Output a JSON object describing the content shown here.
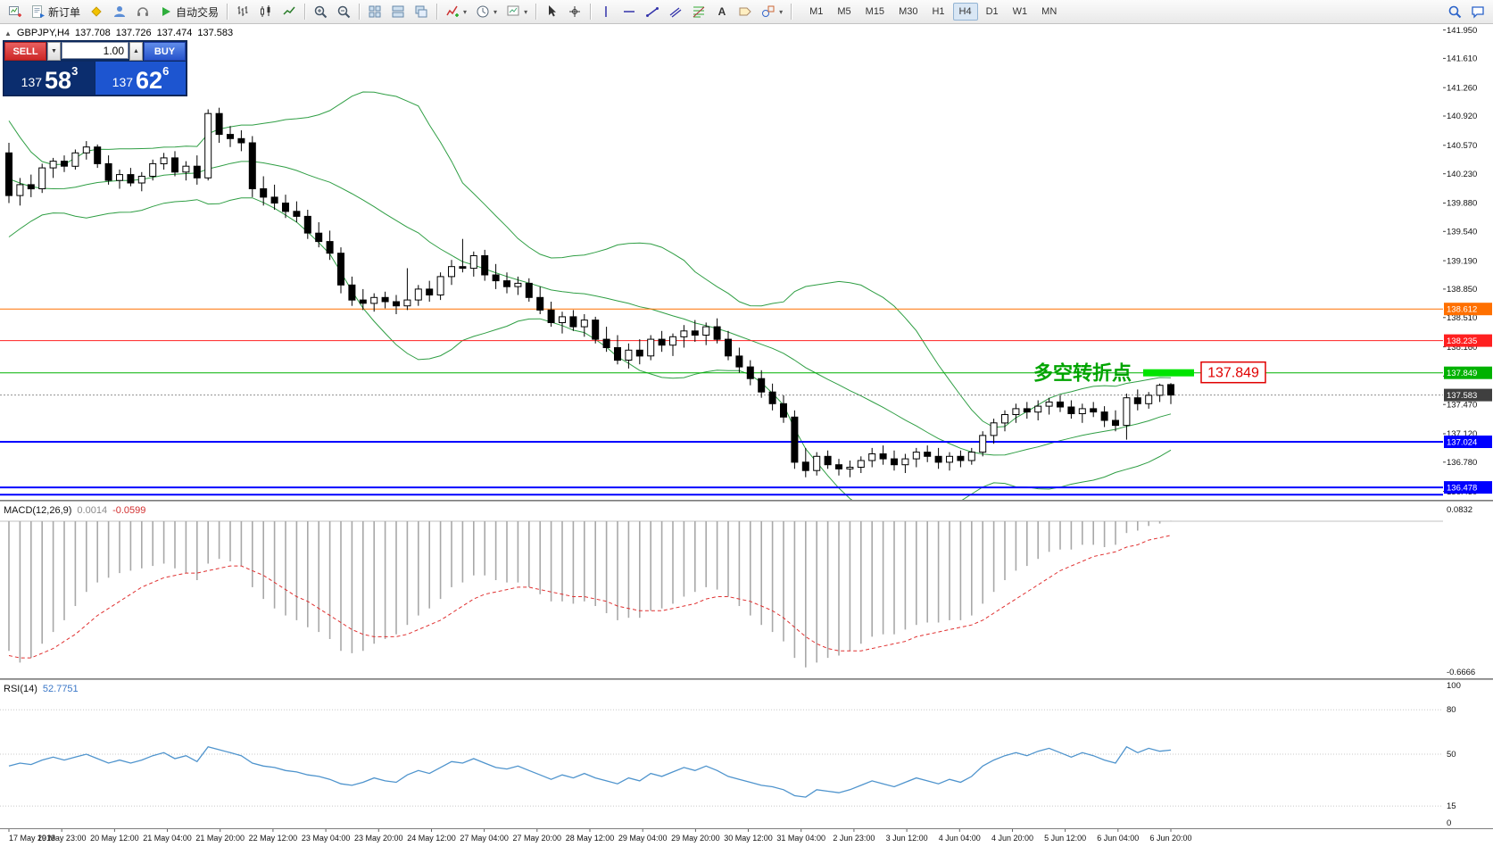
{
  "toolbar": {
    "buttons": [
      {
        "name": "new-chart-button",
        "icon": "chart-plus"
      },
      {
        "name": "new-order-button",
        "icon": "doc-order",
        "label": "新订单"
      },
      {
        "name": "mql5-community-button",
        "icon": "diamond"
      },
      {
        "name": "profile-button",
        "icon": "profile"
      },
      {
        "name": "support-button",
        "icon": "headset"
      },
      {
        "name": "autotrading-button",
        "icon": "play",
        "label": "自动交易"
      },
      {
        "sep": true
      },
      {
        "name": "bar-chart-button",
        "icon": "bars"
      },
      {
        "name": "candlestick-chart-button",
        "icon": "candles"
      },
      {
        "name": "line-chart-button",
        "icon": "linechart"
      },
      {
        "sep": true
      },
      {
        "name": "zoom-in-button",
        "icon": "zoomin"
      },
      {
        "name": "zoom-out-button",
        "icon": "zoomout"
      },
      {
        "sep": true
      },
      {
        "name": "auto-arrange-button",
        "icon": "grid"
      },
      {
        "name": "tile-windows-button",
        "icon": "tileh"
      },
      {
        "name": "cascade-windows-button",
        "icon": "tilev"
      },
      {
        "sep": true
      },
      {
        "name": "indicators-button",
        "icon": "indicator",
        "dropdown": true
      },
      {
        "name": "periods-button",
        "icon": "clock",
        "dropdown": true
      },
      {
        "name": "templates-button",
        "icon": "template",
        "dropdown": true
      },
      {
        "sep": true
      },
      {
        "name": "cursor-button",
        "icon": "cursor"
      },
      {
        "name": "crosshair-button",
        "icon": "crosshair"
      },
      {
        "sep": true
      },
      {
        "name": "vertical-line-button",
        "icon": "vline"
      },
      {
        "name": "horizontal-line-button",
        "icon": "hline"
      },
      {
        "name": "trendline-button",
        "icon": "trend"
      },
      {
        "name": "channel-button",
        "icon": "channel"
      },
      {
        "name": "fibonacci-button",
        "icon": "fibo"
      },
      {
        "name": "text-button",
        "icon": "textA"
      },
      {
        "name": "label-button",
        "icon": "label"
      },
      {
        "name": "shapes-button",
        "icon": "shapes",
        "dropdown": true
      },
      {
        "sep": true
      }
    ],
    "timeframes": [
      {
        "label": "M1"
      },
      {
        "label": "M5"
      },
      {
        "label": "M15"
      },
      {
        "label": "M30"
      },
      {
        "label": "H1"
      },
      {
        "label": "H4",
        "active": true
      },
      {
        "label": "D1"
      },
      {
        "label": "W1"
      },
      {
        "label": "MN"
      }
    ],
    "right_buttons": [
      {
        "name": "search-button",
        "icon": "search"
      },
      {
        "name": "chat-button",
        "icon": "chat"
      }
    ]
  },
  "symbol_overlay": {
    "symbol": "GBPJPY,H4",
    "open": "137.708",
    "high": "137.726",
    "low": "137.474",
    "close": "137.583"
  },
  "trade_panel": {
    "sell_label": "SELL",
    "buy_label": "BUY",
    "volume": "1.00",
    "sell_price": {
      "big": "137",
      "pips": "58",
      "pt": "3"
    },
    "buy_price": {
      "big": "137",
      "pips": "62",
      "pt": "6"
    }
  },
  "chart_data": {
    "type": "candlestick",
    "symbol": "GBPJPY",
    "timeframe": "H4",
    "price_axis": {
      "max": 142.02,
      "min": 136.33,
      "labels": [
        "141.950",
        "141.610",
        "141.260",
        "140.920",
        "140.570",
        "140.230",
        "139.880",
        "139.540",
        "139.190",
        "138.850",
        "138.510",
        "138.160",
        "137.810",
        "137.470",
        "137.120",
        "136.780",
        "136.430"
      ]
    },
    "candles": [
      [
        140.48,
        140.6,
        139.88,
        139.97
      ],
      [
        139.97,
        140.18,
        139.85,
        140.1
      ],
      [
        140.1,
        140.22,
        139.95,
        140.05
      ],
      [
        140.05,
        140.35,
        140.0,
        140.3
      ],
      [
        140.3,
        140.42,
        140.18,
        140.38
      ],
      [
        140.38,
        140.45,
        140.25,
        140.32
      ],
      [
        140.32,
        140.52,
        140.28,
        140.48
      ],
      [
        140.48,
        140.62,
        140.4,
        140.55
      ],
      [
        140.55,
        140.58,
        140.3,
        140.35
      ],
      [
        140.35,
        140.45,
        140.1,
        140.15
      ],
      [
        140.15,
        140.28,
        140.05,
        140.22
      ],
      [
        140.22,
        140.3,
        140.08,
        140.12
      ],
      [
        140.12,
        140.25,
        140.02,
        140.2
      ],
      [
        140.2,
        140.4,
        140.15,
        140.35
      ],
      [
        140.35,
        140.48,
        140.28,
        140.42
      ],
      [
        140.42,
        140.5,
        140.2,
        140.25
      ],
      [
        140.25,
        140.38,
        140.15,
        140.32
      ],
      [
        140.32,
        140.45,
        140.1,
        140.18
      ],
      [
        140.18,
        141.0,
        140.15,
        140.95
      ],
      [
        140.95,
        141.02,
        140.6,
        140.7
      ],
      [
        140.7,
        140.8,
        140.55,
        140.65
      ],
      [
        140.65,
        140.75,
        140.5,
        140.6
      ],
      [
        140.6,
        140.68,
        139.95,
        140.05
      ],
      [
        140.05,
        140.2,
        139.85,
        139.95
      ],
      [
        139.95,
        140.1,
        139.8,
        139.88
      ],
      [
        139.88,
        139.98,
        139.7,
        139.78
      ],
      [
        139.78,
        139.9,
        139.65,
        139.72
      ],
      [
        139.72,
        139.8,
        139.45,
        139.52
      ],
      [
        139.52,
        139.65,
        139.35,
        139.42
      ],
      [
        139.42,
        139.55,
        139.2,
        139.28
      ],
      [
        139.28,
        139.35,
        138.8,
        138.9
      ],
      [
        138.9,
        139.0,
        138.65,
        138.72
      ],
      [
        138.72,
        138.85,
        138.6,
        138.68
      ],
      [
        138.68,
        138.8,
        138.58,
        138.75
      ],
      [
        138.75,
        138.82,
        138.62,
        138.7
      ],
      [
        138.7,
        138.78,
        138.55,
        138.65
      ],
      [
        138.65,
        139.1,
        138.6,
        138.72
      ],
      [
        138.72,
        138.9,
        138.65,
        138.85
      ],
      [
        138.85,
        138.95,
        138.7,
        138.78
      ],
      [
        138.78,
        139.05,
        138.72,
        139.0
      ],
      [
        139.0,
        139.2,
        138.9,
        139.12
      ],
      [
        139.12,
        139.45,
        139.05,
        139.1
      ],
      [
        139.1,
        139.3,
        139.0,
        139.25
      ],
      [
        139.25,
        139.32,
        138.95,
        139.02
      ],
      [
        139.02,
        139.15,
        138.85,
        138.95
      ],
      [
        138.95,
        139.05,
        138.8,
        138.88
      ],
      [
        138.88,
        139.0,
        138.78,
        138.92
      ],
      [
        138.92,
        138.98,
        138.7,
        138.75
      ],
      [
        138.75,
        138.88,
        138.55,
        138.6
      ],
      [
        138.6,
        138.7,
        138.4,
        138.45
      ],
      [
        138.45,
        138.58,
        138.32,
        138.52
      ],
      [
        138.52,
        138.6,
        138.35,
        138.4
      ],
      [
        138.4,
        138.55,
        138.28,
        138.48
      ],
      [
        138.48,
        138.52,
        138.2,
        138.25
      ],
      [
        138.25,
        138.4,
        138.1,
        138.15
      ],
      [
        138.15,
        138.3,
        137.95,
        138.0
      ],
      [
        138.0,
        138.2,
        137.9,
        138.12
      ],
      [
        138.12,
        138.25,
        137.95,
        138.05
      ],
      [
        138.05,
        138.3,
        138.0,
        138.25
      ],
      [
        138.25,
        138.35,
        138.1,
        138.18
      ],
      [
        138.18,
        138.32,
        138.05,
        138.28
      ],
      [
        138.28,
        138.42,
        138.15,
        138.35
      ],
      [
        138.35,
        138.48,
        138.22,
        138.3
      ],
      [
        138.3,
        138.45,
        138.18,
        138.4
      ],
      [
        138.4,
        138.5,
        138.2,
        138.25
      ],
      [
        138.25,
        138.35,
        138.0,
        138.05
      ],
      [
        138.05,
        138.15,
        137.85,
        137.92
      ],
      [
        137.92,
        138.0,
        137.7,
        137.78
      ],
      [
        137.78,
        137.88,
        137.55,
        137.62
      ],
      [
        137.62,
        137.72,
        137.4,
        137.48
      ],
      [
        137.48,
        137.58,
        137.25,
        137.32
      ],
      [
        137.32,
        137.4,
        136.7,
        136.78
      ],
      [
        136.78,
        136.95,
        136.6,
        136.68
      ],
      [
        136.68,
        136.9,
        136.62,
        136.85
      ],
      [
        136.85,
        136.92,
        136.7,
        136.75
      ],
      [
        136.75,
        136.82,
        136.62,
        136.7
      ],
      [
        136.7,
        136.8,
        136.6,
        136.72
      ],
      [
        136.72,
        136.85,
        136.65,
        136.8
      ],
      [
        136.8,
        136.95,
        136.72,
        136.88
      ],
      [
        136.88,
        136.98,
        136.75,
        136.82
      ],
      [
        136.82,
        136.92,
        136.68,
        136.75
      ],
      [
        136.75,
        136.88,
        136.65,
        136.82
      ],
      [
        136.82,
        136.95,
        136.72,
        136.9
      ],
      [
        136.9,
        136.98,
        136.78,
        136.85
      ],
      [
        136.85,
        136.95,
        136.7,
        136.78
      ],
      [
        136.78,
        136.9,
        136.68,
        136.85
      ],
      [
        136.85,
        136.92,
        136.72,
        136.8
      ],
      [
        136.8,
        136.95,
        136.75,
        136.9
      ],
      [
        136.9,
        137.15,
        136.85,
        137.1
      ],
      [
        137.1,
        137.3,
        137.0,
        137.25
      ],
      [
        137.25,
        137.4,
        137.15,
        137.35
      ],
      [
        137.35,
        137.48,
        137.25,
        137.42
      ],
      [
        137.42,
        137.5,
        137.3,
        137.38
      ],
      [
        137.38,
        137.52,
        137.28,
        137.45
      ],
      [
        137.45,
        137.55,
        137.35,
        137.5
      ],
      [
        137.5,
        137.58,
        137.38,
        137.44
      ],
      [
        137.44,
        137.52,
        137.3,
        137.36
      ],
      [
        137.36,
        137.48,
        137.25,
        137.42
      ],
      [
        137.42,
        137.5,
        137.32,
        137.38
      ],
      [
        137.38,
        137.45,
        137.2,
        137.28
      ],
      [
        137.28,
        137.4,
        137.15,
        137.22
      ],
      [
        137.22,
        137.6,
        137.05,
        137.55
      ],
      [
        137.55,
        137.65,
        137.4,
        137.48
      ],
      [
        137.48,
        137.62,
        137.42,
        137.58
      ],
      [
        137.58,
        137.72,
        137.5,
        137.7
      ],
      [
        137.708,
        137.726,
        137.474,
        137.583
      ]
    ],
    "bollinger": {
      "period": 20,
      "deviation": 2,
      "color": "#2f9e44",
      "pre_closes": [
        141.3,
        141.1,
        140.9,
        140.7,
        140.5,
        140.3,
        140.1,
        139.95,
        139.85,
        139.9,
        140.0,
        140.1,
        139.95,
        139.85,
        139.9,
        140.05,
        140.15,
        140.05,
        139.95,
        140.1
      ]
    },
    "hlines": [
      {
        "price": 138.612,
        "label": "138.612",
        "color": "#ff7000",
        "width": 1
      },
      {
        "price": 138.235,
        "label": "138.235",
        "color": "#ff2020",
        "width": 1
      },
      {
        "price": 137.849,
        "label": "137.849",
        "color": "#00b200",
        "width": 1
      },
      {
        "price": 137.024,
        "label": "137.024",
        "color": "#0000ff",
        "width": 2
      },
      {
        "price": 136.478,
        "label": "136.478",
        "color": "#0000ff",
        "width": 2
      },
      {
        "price": 136.392,
        "label": null,
        "color": "#0000ff",
        "width": 2
      }
    ],
    "current_price": {
      "value": 137.583,
      "label": "137.583",
      "badge_color": "#3f3f3f"
    },
    "annotation": {
      "text": "多空转折点",
      "price": 137.849,
      "label": "137.849",
      "marker_color": "#00e400"
    },
    "macd": {
      "title": "MACD(12,26,9)",
      "value_main": "0.0014",
      "value_signal": "-0.0599",
      "axis_max_label": "0.0832",
      "axis_min_label": "-0.6666",
      "ymax": 0.0832,
      "ymin": -0.6666,
      "histogram": [
        -0.55,
        -0.6,
        -0.58,
        -0.52,
        -0.47,
        -0.42,
        -0.36,
        -0.3,
        -0.26,
        -0.24,
        -0.22,
        -0.21,
        -0.2,
        -0.19,
        -0.18,
        -0.2,
        -0.22,
        -0.25,
        -0.18,
        -0.16,
        -0.17,
        -0.19,
        -0.28,
        -0.33,
        -0.37,
        -0.4,
        -0.42,
        -0.45,
        -0.47,
        -0.5,
        -0.55,
        -0.56,
        -0.55,
        -0.52,
        -0.5,
        -0.48,
        -0.44,
        -0.4,
        -0.37,
        -0.33,
        -0.28,
        -0.26,
        -0.23,
        -0.23,
        -0.25,
        -0.26,
        -0.26,
        -0.28,
        -0.31,
        -0.34,
        -0.34,
        -0.35,
        -0.34,
        -0.36,
        -0.39,
        -0.42,
        -0.41,
        -0.41,
        -0.38,
        -0.37,
        -0.35,
        -0.32,
        -0.3,
        -0.28,
        -0.29,
        -0.32,
        -0.36,
        -0.4,
        -0.44,
        -0.47,
        -0.51,
        -0.58,
        -0.62,
        -0.6,
        -0.58,
        -0.57,
        -0.55,
        -0.52,
        -0.49,
        -0.48,
        -0.48,
        -0.46,
        -0.44,
        -0.43,
        -0.43,
        -0.42,
        -0.42,
        -0.4,
        -0.35,
        -0.3,
        -0.25,
        -0.21,
        -0.19,
        -0.16,
        -0.13,
        -0.12,
        -0.12,
        -0.1,
        -0.1,
        -0.11,
        -0.1,
        -0.05,
        -0.04,
        -0.02,
        -0.01,
        0.0014
      ],
      "signal": [
        -0.57,
        -0.58,
        -0.58,
        -0.56,
        -0.54,
        -0.51,
        -0.48,
        -0.44,
        -0.4,
        -0.37,
        -0.34,
        -0.31,
        -0.28,
        -0.26,
        -0.24,
        -0.23,
        -0.22,
        -0.22,
        -0.21,
        -0.2,
        -0.19,
        -0.19,
        -0.21,
        -0.23,
        -0.26,
        -0.29,
        -0.32,
        -0.34,
        -0.37,
        -0.4,
        -0.43,
        -0.46,
        -0.48,
        -0.49,
        -0.49,
        -0.49,
        -0.48,
        -0.46,
        -0.44,
        -0.42,
        -0.39,
        -0.36,
        -0.33,
        -0.31,
        -0.3,
        -0.29,
        -0.28,
        -0.28,
        -0.29,
        -0.3,
        -0.31,
        -0.32,
        -0.32,
        -0.33,
        -0.34,
        -0.36,
        -0.37,
        -0.38,
        -0.38,
        -0.38,
        -0.37,
        -0.36,
        -0.35,
        -0.33,
        -0.32,
        -0.32,
        -0.33,
        -0.34,
        -0.36,
        -0.38,
        -0.41,
        -0.45,
        -0.49,
        -0.52,
        -0.54,
        -0.55,
        -0.55,
        -0.55,
        -0.54,
        -0.53,
        -0.52,
        -0.51,
        -0.49,
        -0.48,
        -0.47,
        -0.46,
        -0.45,
        -0.44,
        -0.42,
        -0.39,
        -0.36,
        -0.33,
        -0.3,
        -0.27,
        -0.24,
        -0.21,
        -0.19,
        -0.17,
        -0.15,
        -0.14,
        -0.13,
        -0.11,
        -0.1,
        -0.08,
        -0.07,
        -0.0599
      ]
    },
    "rsi": {
      "title": "RSI(14)",
      "value": "52.7751",
      "levels": [
        100,
        80,
        50,
        15,
        0
      ],
      "ymax": 100,
      "ymin": 0,
      "values": [
        42,
        44,
        43,
        46,
        48,
        46,
        48,
        50,
        47,
        44,
        46,
        44,
        46,
        49,
        51,
        47,
        49,
        45,
        55,
        53,
        51,
        49,
        44,
        42,
        41,
        39,
        38,
        36,
        35,
        33,
        30,
        29,
        31,
        34,
        32,
        31,
        36,
        39,
        37,
        41,
        45,
        44,
        47,
        44,
        41,
        40,
        42,
        39,
        36,
        33,
        36,
        34,
        37,
        34,
        32,
        30,
        34,
        32,
        37,
        35,
        38,
        41,
        39,
        42,
        39,
        35,
        33,
        31,
        29,
        28,
        26,
        22,
        21,
        26,
        25,
        24,
        26,
        29,
        32,
        30,
        28,
        31,
        34,
        32,
        30,
        33,
        31,
        35,
        42,
        46,
        49,
        51,
        49,
        52,
        54,
        51,
        48,
        51,
        49,
        46,
        44,
        55,
        51,
        54,
        52,
        52.78
      ]
    },
    "time_axis": [
      "17 May 2019",
      "19 May 23:00",
      "20 May 12:00",
      "21 May 04:00",
      "21 May 20:00",
      "22 May 12:00",
      "23 May 04:00",
      "23 May 20:00",
      "24 May 12:00",
      "27 May 04:00",
      "27 May 20:00",
      "28 May 12:00",
      "29 May 04:00",
      "29 May 20:00",
      "30 May 12:00",
      "31 May 04:00",
      "2 Jun 23:00",
      "3 Jun 12:00",
      "4 Jun 04:00",
      "4 Jun 20:00",
      "5 Jun 12:00",
      "6 Jun 04:00",
      "6 Jun 20:00"
    ]
  }
}
